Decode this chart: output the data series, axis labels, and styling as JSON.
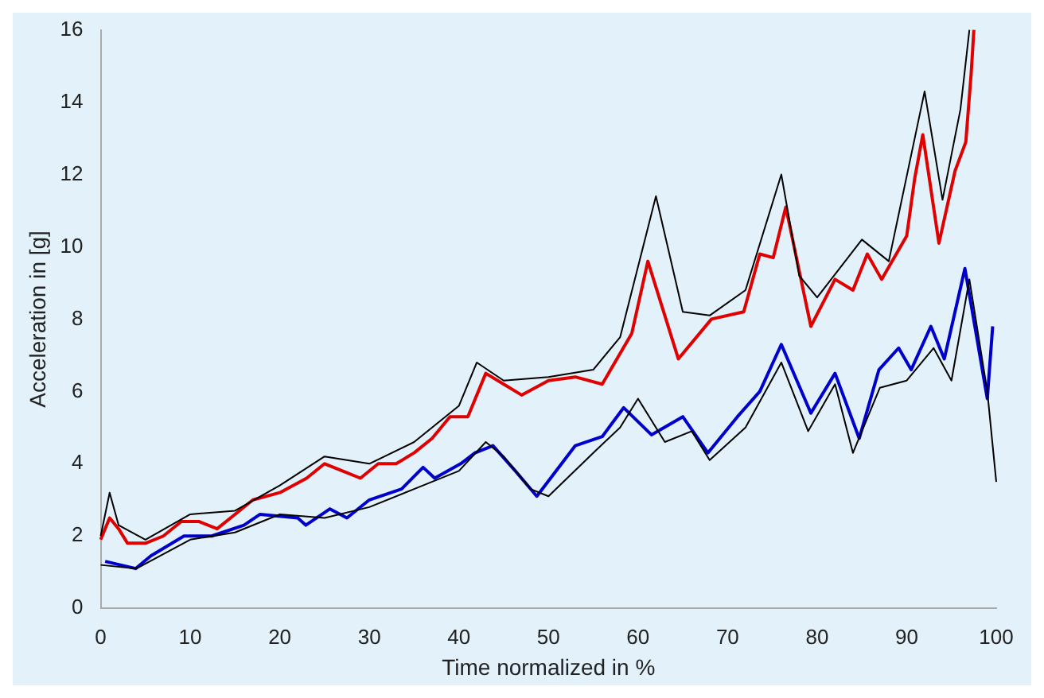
{
  "chart_data": {
    "type": "line",
    "xlabel": "Time normalized in %",
    "ylabel": "Acceleration in [g]",
    "xlim": [
      0,
      100
    ],
    "ylim": [
      0,
      16
    ],
    "xticks": [
      0,
      10,
      20,
      30,
      40,
      50,
      60,
      70,
      80,
      90,
      100
    ],
    "yticks": [
      0,
      2,
      4,
      6,
      8,
      10,
      12,
      14,
      16
    ],
    "grid": false,
    "legend": false,
    "marker": "none",
    "line_style": "solid",
    "series": [
      {
        "color": "#000000",
        "x": [
          0,
          1,
          2,
          5,
          10,
          15,
          20,
          25,
          30,
          35,
          40,
          42,
          45,
          50,
          55,
          58,
          62,
          65,
          68,
          72,
          76,
          78,
          80,
          85,
          88,
          92,
          94,
          96,
          97
        ],
        "values": [
          2.0,
          3.2,
          2.3,
          1.9,
          2.6,
          2.7,
          3.4,
          4.2,
          4.0,
          4.6,
          5.6,
          6.8,
          6.3,
          6.4,
          6.6,
          7.5,
          11.4,
          8.2,
          8.1,
          8.8,
          12.0,
          9.2,
          8.6,
          10.2,
          9.6,
          14.3,
          11.3,
          13.8,
          16
        ]
      },
      {
        "color": "#000000",
        "x": [
          0,
          4,
          10,
          15,
          20,
          25,
          30,
          35,
          40,
          43,
          45,
          48,
          50,
          55,
          58,
          60,
          63,
          66,
          68,
          72,
          76,
          79,
          82,
          84,
          87,
          90,
          93,
          95,
          97,
          99,
          100
        ],
        "values": [
          1.2,
          1.1,
          1.9,
          2.1,
          2.6,
          2.5,
          2.8,
          3.3,
          3.8,
          4.6,
          4.2,
          3.3,
          3.1,
          4.3,
          5.0,
          5.8,
          4.6,
          4.9,
          4.1,
          5.0,
          6.8,
          4.9,
          6.2,
          4.3,
          6.1,
          6.3,
          7.2,
          6.3,
          9.1,
          6.0,
          3.5
        ]
      },
      {
        "color": "#e00000",
        "x": [
          0,
          1,
          2,
          3,
          5,
          7,
          9,
          11,
          13,
          15,
          17,
          20,
          23,
          25,
          27,
          29,
          31,
          33,
          35,
          37,
          39,
          41,
          43,
          45,
          47,
          50,
          53,
          56,
          59.3,
          61.1,
          64.5,
          68.2,
          71.8,
          73.6,
          75.1,
          76.5,
          79.3,
          82,
          84,
          85.6,
          87.2,
          90,
          90.9,
          91.8,
          93.6,
          95.4,
          96.6,
          97.2,
          97.5
        ],
        "values": [
          1.9,
          2.5,
          2.2,
          1.8,
          1.8,
          2.0,
          2.4,
          2.4,
          2.2,
          2.6,
          3.0,
          3.2,
          3.6,
          4.0,
          3.8,
          3.6,
          4.0,
          4.0,
          4.3,
          4.7,
          5.3,
          5.3,
          6.5,
          6.2,
          5.9,
          6.3,
          6.4,
          6.2,
          7.6,
          9.6,
          6.9,
          8.0,
          8.2,
          9.8,
          9.7,
          11.1,
          7.8,
          9.1,
          8.8,
          9.8,
          9.1,
          10.3,
          11.9,
          13.1,
          10.1,
          12.1,
          12.9,
          14.8,
          16
        ]
      },
      {
        "color": "#0000cc",
        "x": [
          0.5,
          3.9,
          5.6,
          9.3,
          12.4,
          16,
          17.8,
          22,
          22.9,
          25.6,
          27.5,
          30,
          33.6,
          36,
          37.3,
          40.2,
          41.8,
          43.8,
          46.3,
          48.7,
          53,
          56,
          58.4,
          61.5,
          65,
          67.8,
          71.1,
          73.6,
          76,
          79.3,
          82,
          84.7,
          86.9,
          89.1,
          90.5,
          92.7,
          94.2,
          96.5,
          99,
          99.6
        ],
        "values": [
          1.3,
          1.1,
          1.45,
          2.0,
          2.0,
          2.3,
          2.6,
          2.5,
          2.3,
          2.75,
          2.5,
          3.0,
          3.3,
          3.9,
          3.6,
          4.0,
          4.3,
          4.5,
          3.8,
          3.1,
          4.5,
          4.75,
          5.55,
          4.8,
          5.3,
          4.3,
          5.3,
          6.0,
          7.3,
          5.4,
          6.5,
          4.7,
          6.6,
          7.2,
          6.6,
          7.8,
          6.9,
          9.4,
          5.8,
          7.8
        ]
      }
    ]
  }
}
